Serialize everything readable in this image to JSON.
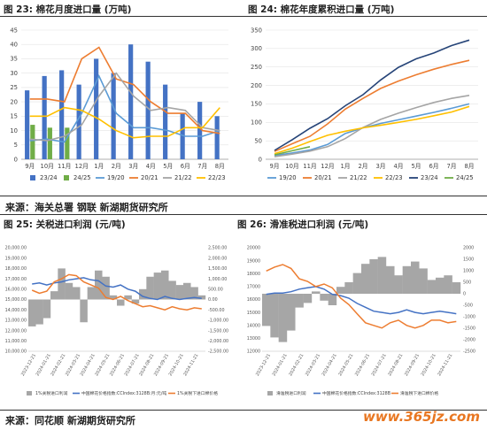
{
  "panel1": {
    "title": "图 23: 棉花月度进口量 (万吨)"
  },
  "panel2": {
    "title": "图 24: 棉花年度累积进口量 (万吨)"
  },
  "panel3": {
    "title": "图 25: 关税进口利润 (元/吨)"
  },
  "panel4": {
    "title": "图 26: 滑准税进口利润 (元/吨)"
  },
  "source1": "来源：海关总署  钢联  新湖期货研究所",
  "source2": "来源：同花顺  新湖期货研究所",
  "watermark": "www.365jz.com",
  "chart_data": [
    {
      "type": "bar",
      "id": "c1",
      "categories": [
        "9月",
        "10月",
        "11月",
        "12月",
        "1月",
        "2月",
        "3月",
        "4月",
        "5月",
        "6月",
        "7月",
        "8月"
      ],
      "ylim": [
        0,
        45
      ],
      "yticks": [
        0,
        5,
        10,
        15,
        20,
        25,
        30,
        35,
        40,
        45
      ],
      "series": [
        {
          "name": "23/24",
          "kind": "bar",
          "color": "#4472c4",
          "values": [
            24,
            29,
            31,
            26,
            35,
            30,
            40,
            34,
            26,
            16,
            20,
            15
          ]
        },
        {
          "name": "24/25",
          "kind": "bar",
          "color": "#70ad47",
          "values": [
            12,
            11,
            11,
            null,
            null,
            null,
            null,
            null,
            null,
            null,
            null,
            null
          ]
        },
        {
          "name": "19/20",
          "kind": "line",
          "color": "#5b9bd5",
          "values": [
            6.5,
            7,
            6,
            16,
            29,
            16,
            11,
            11,
            10,
            8,
            8,
            10
          ]
        },
        {
          "name": "20/21",
          "kind": "line",
          "color": "#ed7d31",
          "values": [
            21,
            21,
            20,
            35,
            39,
            28,
            26,
            20,
            16,
            16,
            10,
            9
          ]
        },
        {
          "name": "21/22",
          "kind": "line",
          "color": "#a5a5a5",
          "values": [
            7,
            6.5,
            8,
            12,
            22,
            30,
            22,
            17,
            18,
            17,
            11,
            10
          ]
        },
        {
          "name": "22/23",
          "kind": "line",
          "color": "#ffc000",
          "values": [
            15,
            15,
            18,
            17,
            14,
            10,
            7.5,
            8,
            8,
            11,
            11,
            18
          ]
        }
      ]
    },
    {
      "type": "line",
      "id": "c2",
      "categories": [
        "9月",
        "10月",
        "11月",
        "12月",
        "1月",
        "2月",
        "3月",
        "4月",
        "5月",
        "6月",
        "7月",
        "8月"
      ],
      "ylim": [
        0,
        350
      ],
      "yticks": [
        0,
        50,
        100,
        150,
        200,
        250,
        300,
        350
      ],
      "series": [
        {
          "name": "19/20",
          "color": "#5b9bd5",
          "values": [
            10,
            17,
            25,
            40,
            70,
            85,
            97,
            107,
            117,
            127,
            138,
            150
          ]
        },
        {
          "name": "20/21",
          "color": "#ed7d31",
          "values": [
            21,
            42,
            62,
            96,
            136,
            165,
            192,
            212,
            229,
            244,
            257,
            268
          ]
        },
        {
          "name": "21/22",
          "color": "#a5a5a5",
          "values": [
            7,
            14,
            22,
            34,
            56,
            86,
            108,
            125,
            140,
            154,
            165,
            173
          ]
        },
        {
          "name": "22/23",
          "color": "#ffc000",
          "values": [
            15,
            30,
            48,
            65,
            76,
            85,
            92,
            100,
            108,
            118,
            128,
            143
          ]
        },
        {
          "name": "23/24",
          "color": "#264478",
          "values": [
            24,
            53,
            84,
            110,
            145,
            175,
            215,
            249,
            272,
            288,
            308,
            323
          ]
        },
        {
          "name": "24/25",
          "color": "#70ad47",
          "values": [
            12,
            23,
            34,
            null,
            null,
            null,
            null,
            null,
            null,
            null,
            null,
            null
          ]
        }
      ]
    },
    {
      "type": "area",
      "id": "c3",
      "xticks": [
        "2023-12-21",
        "2024-01-21",
        "2024-02-21",
        "2024-03-21",
        "2024-04-21",
        "2024-05-21",
        "2024-06-21",
        "2024-07-21",
        "2024-08-21",
        "2024-09-21",
        "2024-10-21",
        "2024-11-21"
      ],
      "yleft_ticks": [
        "10,000.00",
        "11,000.00",
        "12,000.00",
        "13,000.00",
        "14,000.00",
        "15,000.00",
        "16,000.00",
        "17,000.00",
        "18,000.00",
        "19,000.00",
        "20,000.00"
      ],
      "yright_ticks": [
        "-2,500.00",
        "-2,000.00",
        "-1,500.00",
        "-1,000.00",
        "-500.00",
        "0.00",
        "500.00",
        "1,000.00",
        "1,500.00",
        "2,000.00",
        "2,500.00"
      ],
      "series": [
        {
          "name": "1%关税进口利润",
          "color": "#a6a6a6",
          "kind": "bar",
          "values": [
            -1300,
            -1200,
            -900,
            400,
            1500,
            800,
            600,
            -1100,
            600,
            1400,
            1100,
            200,
            -300,
            200,
            -200,
            500,
            1100,
            1300,
            1400,
            900,
            700,
            800,
            600,
            200
          ]
        },
        {
          "name": "中国棉花价格指数:CCIndex:3128B:月:元/吨",
          "color": "#4472c4",
          "kind": "line",
          "values": [
            16500,
            16600,
            16400,
            16600,
            16700,
            16900,
            17000,
            17100,
            16900,
            16800,
            16300,
            16200,
            16400,
            16000,
            15800,
            15300,
            15100,
            15000,
            15300,
            15100,
            15000,
            15100,
            15200,
            15100
          ]
        },
        {
          "name": "1%关税下进口棉价格",
          "color": "#ed7d31",
          "kind": "line",
          "values": [
            15900,
            15600,
            15800,
            16700,
            17000,
            17400,
            17300,
            16700,
            16400,
            16100,
            15200,
            15000,
            15300,
            14900,
            14600,
            14300,
            14400,
            14200,
            14000,
            14300,
            14100,
            14000,
            14200,
            14100
          ]
        }
      ]
    },
    {
      "type": "area",
      "id": "c4",
      "xticks": [
        "2023-12-21",
        "2024-01-21",
        "2024-02-21",
        "2024-03-21",
        "2024-04-21",
        "2024-05-21",
        "2024-06-21",
        "2024-07-21",
        "2024-08-21",
        "2024-09-21",
        "2024-10-21",
        "2024-11-21"
      ],
      "yleft_ticks": [
        "12000",
        "13000",
        "14000",
        "15000",
        "16000",
        "17000",
        "18000",
        "19000",
        "20000"
      ],
      "yright_ticks": [
        "-2500",
        "-2000",
        "-1500",
        "-1000",
        "-500",
        "0",
        "500",
        "1000",
        "1500",
        "2000"
      ],
      "series": [
        {
          "name": "滑准税进口利润",
          "color": "#a6a6a6",
          "kind": "bar",
          "values": [
            -1400,
            -1900,
            -2100,
            -1600,
            -600,
            -400,
            100,
            -300,
            -500,
            300,
            500,
            900,
            1300,
            1500,
            1600,
            1200,
            800,
            1200,
            1400,
            1100,
            600,
            700,
            800,
            500
          ]
        },
        {
          "name": "中国棉花价格指数:CCIndex:3128B",
          "color": "#4472c4",
          "kind": "line",
          "values": [
            16400,
            16500,
            16500,
            16600,
            16800,
            16900,
            17000,
            16800,
            16400,
            16300,
            16100,
            15700,
            15400,
            15100,
            15000,
            14900,
            15000,
            15200,
            15000,
            14900,
            15000,
            15100,
            15000,
            14900
          ]
        },
        {
          "name": "滑准税下进口棉价格",
          "color": "#ed7d31",
          "kind": "line",
          "values": [
            18200,
            18500,
            18700,
            18400,
            17600,
            17400,
            17000,
            17200,
            16900,
            16100,
            15600,
            14900,
            14200,
            14000,
            13800,
            14200,
            14400,
            14000,
            13800,
            14000,
            14400,
            14400,
            14200,
            14300
          ]
        }
      ]
    }
  ]
}
